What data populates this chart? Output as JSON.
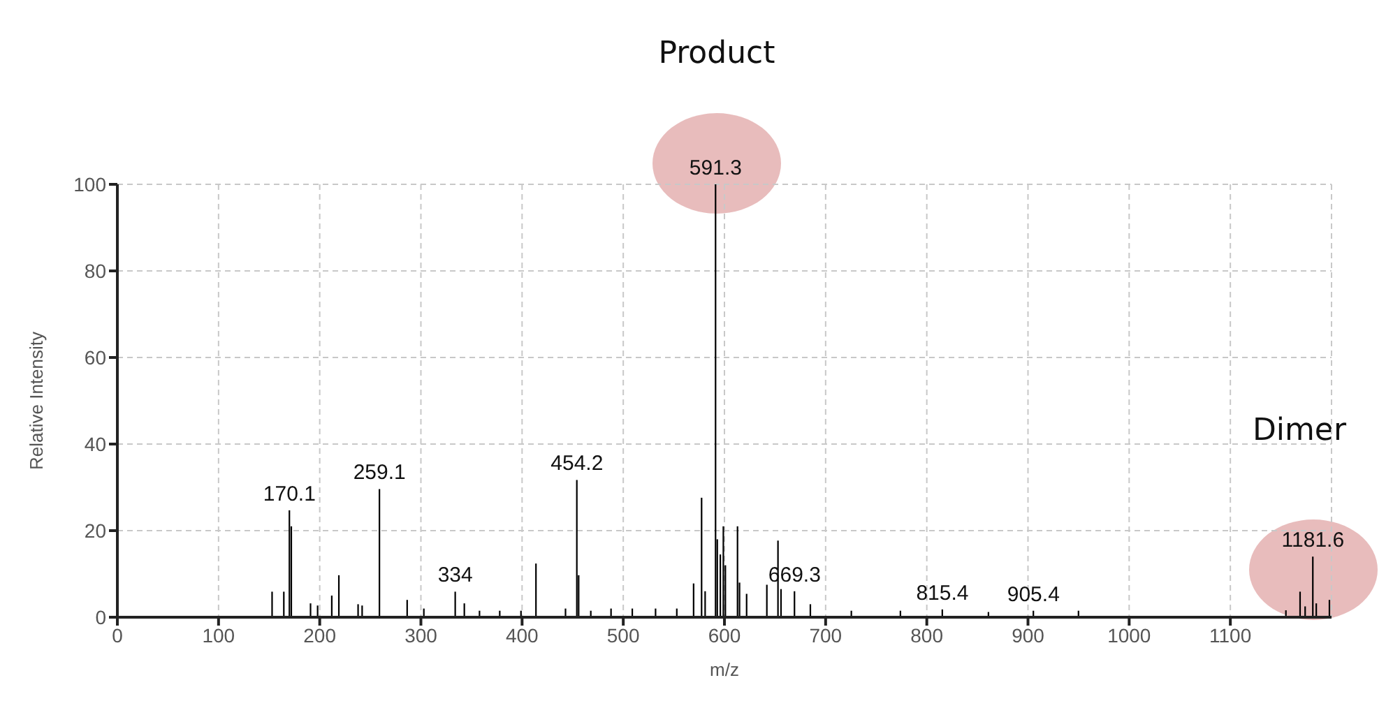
{
  "chart_data": {
    "type": "bar",
    "xlabel": "m/z",
    "ylabel": "Relative Intensity",
    "x": [
      153,
      164.6,
      170.1,
      172,
      191,
      198,
      212,
      219,
      238,
      242,
      259.1,
      286.5,
      303,
      334,
      343,
      358,
      378,
      399,
      413.8,
      443,
      454.2,
      456,
      468,
      488,
      509,
      532,
      553,
      569.6,
      577.5,
      581,
      591.3,
      593,
      596,
      599,
      601,
      613,
      615,
      622,
      642,
      653,
      656,
      669.3,
      685,
      725.5,
      774,
      815.4,
      861,
      905.4,
      950,
      1155,
      1169,
      1174,
      1181.6,
      1185,
      1198
    ],
    "values": [
      5.9,
      5.9,
      24.7,
      21,
      3.2,
      2.7,
      5,
      9.7,
      3,
      2.7,
      29.6,
      4,
      2,
      5.9,
      3.2,
      1.5,
      1.5,
      1.5,
      12.4,
      2,
      31.7,
      9.7,
      1.5,
      2,
      2,
      2,
      2,
      7.8,
      27.6,
      6,
      100,
      18,
      14.5,
      21,
      12,
      21,
      8,
      5.4,
      7.5,
      17.7,
      6.5,
      6,
      3,
      1.5,
      1.5,
      1.8,
      1.2,
      1.5,
      1.5,
      1.6,
      5.9,
      2.5,
      14,
      3.2,
      4
    ],
    "color": "#000000",
    "xlim": [
      0,
      1200
    ],
    "xticks": [
      0,
      100,
      200,
      300,
      400,
      500,
      600,
      700,
      800,
      900,
      1000,
      1100
    ],
    "ylim": [
      0,
      100
    ],
    "yticks": [
      0,
      20,
      40,
      60,
      80,
      100
    ],
    "grid": true,
    "annotations": [
      "Product",
      "Dimer",
      {
        "text": "170.1",
        "x": 170.1,
        "y": 24.7
      },
      {
        "text": "259.1",
        "x": 259.1,
        "y": 29.6
      },
      {
        "text": "334",
        "x": 334,
        "y": 5.9
      },
      {
        "text": "454.2",
        "x": 454.2,
        "y": 31.7
      },
      {
        "text": "591.3",
        "x": 591.3,
        "y": 100
      },
      {
        "text": "669.3",
        "x": 669.3,
        "y": 6
      },
      {
        "text": "815.4",
        "x": 815.4,
        "y": 1.8
      },
      {
        "text": "905.4",
        "x": 905.4,
        "y": 1.5
      },
      {
        "text": "1181.6",
        "x": 1181.6,
        "y": 14
      }
    ]
  }
}
